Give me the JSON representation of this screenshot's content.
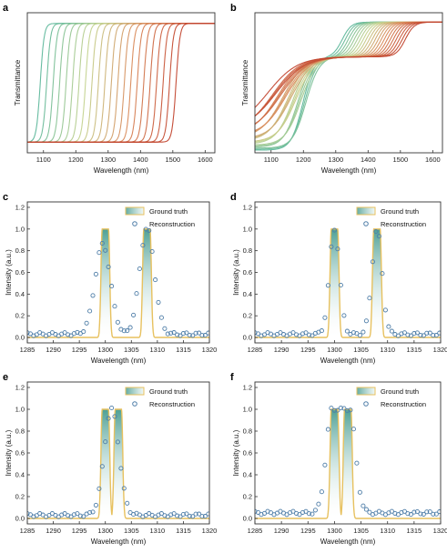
{
  "chart_data": [
    {
      "panel": "a",
      "type": "line",
      "xlabel": "Wavelength (nm)",
      "ylabel": "Transmittance",
      "xlim": [
        1050,
        1630
      ],
      "xticks": [
        1100,
        1200,
        1300,
        1400,
        1500,
        1600
      ],
      "ylim": [
        0,
        1.05
      ],
      "curve_shape": "rising-edge",
      "series_count": 22,
      "edge_centers": [
        1090,
        1110,
        1130,
        1150,
        1170,
        1190,
        1210,
        1230,
        1250,
        1270,
        1290,
        1310,
        1330,
        1350,
        1370,
        1390,
        1410,
        1430,
        1450,
        1470,
        1490,
        1510
      ],
      "low_level": 0.08,
      "high_level": 0.97,
      "colors": [
        "#5fb89c",
        "#c4d38f",
        "#d98a5a",
        "#c2442e"
      ]
    },
    {
      "panel": "b",
      "type": "line",
      "xlabel": "Wavelength (nm)",
      "ylabel": "Transmittance",
      "xlim": [
        1050,
        1630
      ],
      "xticks": [
        1100,
        1200,
        1300,
        1400,
        1500,
        1600
      ],
      "ylim": [
        0,
        1.05
      ],
      "curve_shape": "step-then-rise",
      "series_count": 22,
      "colors": [
        "#5fb89c",
        "#c4d38f",
        "#d98a5a",
        "#c2442e"
      ]
    },
    {
      "panel": "c",
      "type": "line",
      "xlabel": "Wavelength (nm)",
      "ylabel": "Intensity (a.u.)",
      "xlim": [
        1285,
        1320
      ],
      "xticks": [
        1285,
        1290,
        1295,
        1300,
        1305,
        1310,
        1315,
        1320
      ],
      "ylim": [
        -0.05,
        1.25
      ],
      "yticks": [
        0.0,
        0.2,
        0.4,
        0.6,
        0.8,
        1.0,
        1.2
      ],
      "legend": [
        "Ground truth",
        "Reconstruction"
      ],
      "legend_position": "top-right",
      "ground_truth_peaks": [
        {
          "center": 1300,
          "fwhm": 1.2
        },
        {
          "center": 1308,
          "fwhm": 1.2
        }
      ],
      "reconstruction_peaks": [
        {
          "center": 1299.5,
          "height": 0.83,
          "sigma": 2.1
        },
        {
          "center": 1308,
          "height": 0.98,
          "sigma": 2.0
        }
      ],
      "reconstruction_baseline": 0.03
    },
    {
      "panel": "d",
      "type": "line",
      "xlabel": "Wavelength (nm)",
      "ylabel": "Intensity (a.u.)",
      "xlim": [
        1285,
        1320
      ],
      "xticks": [
        1285,
        1290,
        1295,
        1300,
        1305,
        1310,
        1315,
        1320
      ],
      "ylim": [
        -0.05,
        1.25
      ],
      "yticks": [
        0.0,
        0.2,
        0.4,
        0.6,
        0.8,
        1.0,
        1.2
      ],
      "legend": [
        "Ground truth",
        "Reconstruction"
      ],
      "legend_position": "top-right",
      "ground_truth_peaks": [
        {
          "center": 1300,
          "fwhm": 1.2
        },
        {
          "center": 1308,
          "fwhm": 1.2
        }
      ],
      "reconstruction_peaks": [
        {
          "center": 1300,
          "height": 0.97,
          "sigma": 1.35
        },
        {
          "center": 1308,
          "height": 0.97,
          "sigma": 1.35
        }
      ],
      "reconstruction_baseline": 0.03
    },
    {
      "panel": "e",
      "type": "line",
      "xlabel": "Wavelength (nm)",
      "ylabel": "Intensity (a.u.)",
      "xlim": [
        1285,
        1320
      ],
      "xticks": [
        1285,
        1290,
        1295,
        1300,
        1305,
        1310,
        1315,
        1320
      ],
      "ylim": [
        -0.05,
        1.25
      ],
      "yticks": [
        0.0,
        0.2,
        0.4,
        0.6,
        0.8,
        1.0,
        1.2
      ],
      "legend": [
        "Ground truth",
        "Reconstruction"
      ],
      "legend_position": "top-right",
      "ground_truth_peaks": [
        {
          "center": 1300,
          "fwhm": 1.2
        },
        {
          "center": 1302.5,
          "fwhm": 1.2
        }
      ],
      "reconstruction_peaks": [
        {
          "center": 1301.2,
          "height": 0.98,
          "sigma": 2.0
        }
      ],
      "reconstruction_baseline": 0.03
    },
    {
      "panel": "f",
      "type": "line",
      "xlabel": "Wavelength (nm)",
      "ylabel": "Intensity (a.u.)",
      "xlim": [
        1285,
        1320
      ],
      "xticks": [
        1285,
        1290,
        1295,
        1300,
        1305,
        1310,
        1315,
        1320
      ],
      "ylim": [
        -0.05,
        1.25
      ],
      "yticks": [
        0.0,
        0.2,
        0.4,
        0.6,
        0.8,
        1.0,
        1.2
      ],
      "legend": [
        "Ground truth",
        "Reconstruction"
      ],
      "legend_position": "top-right",
      "ground_truth_peaks": [
        {
          "center": 1300,
          "fwhm": 1.2
        },
        {
          "center": 1302.5,
          "fwhm": 1.2
        }
      ],
      "reconstruction_peaks": [
        {
          "center": 1301.2,
          "height": 0.97,
          "sigma": 1.6,
          "flat": true
        }
      ],
      "reconstruction_baseline": 0.05
    }
  ],
  "style": {
    "ground_truth_line": "#e7c15f",
    "fill_top": "#2f8f82",
    "fill_bottom": "#ffffff",
    "marker_stroke": "#4f7ea8",
    "axis_color": "#333333"
  }
}
